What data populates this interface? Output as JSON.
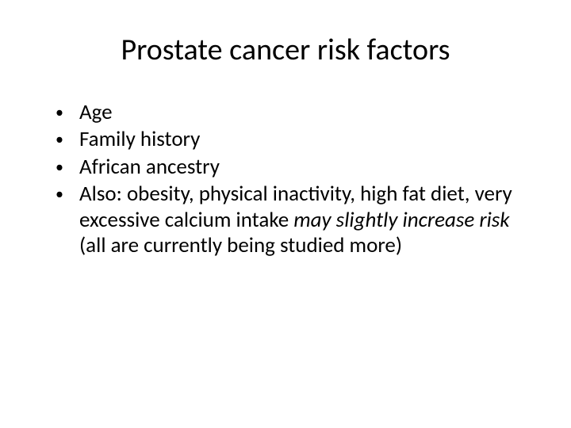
{
  "slide": {
    "title": "Prostate cancer risk factors",
    "bullets": [
      {
        "text": "Age"
      },
      {
        "text": "Family history"
      },
      {
        "text": "African ancestry"
      },
      {
        "prefix": "Also: obesity, physical inactivity, high fat diet, very excessive calcium intake ",
        "italic": "may slightly increase risk ",
        "suffix": "(all are currently being studied more)"
      }
    ],
    "colors": {
      "background": "#ffffff",
      "text": "#000000"
    },
    "fonts": {
      "title_size": 38,
      "body_size": 27
    }
  }
}
